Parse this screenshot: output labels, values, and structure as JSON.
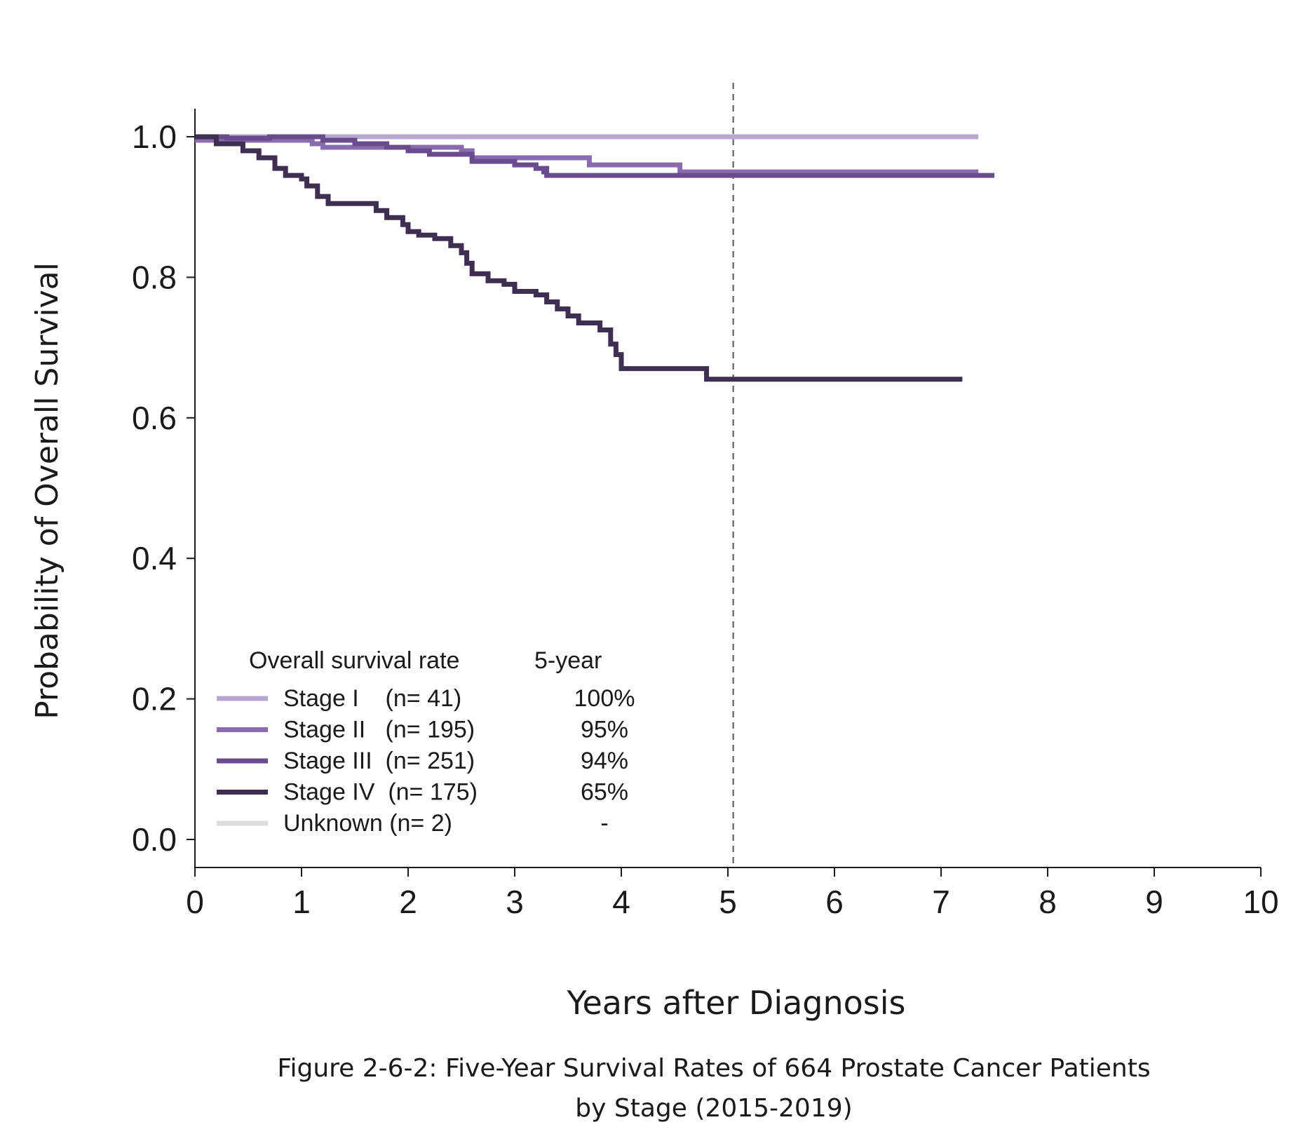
{
  "chart_data": {
    "type": "line",
    "xlabel": "Years after Diagnosis",
    "ylabel": "Probability of Overall Survival",
    "caption_line1": "Figure 2-6-2: Five-Year Survival Rates of 664 Prostate Cancer Patients",
    "caption_line2": "by Stage (2015-2019)",
    "xlim": [
      0,
      10
    ],
    "ylim": [
      0,
      1
    ],
    "x_ticks": [
      "0",
      "1",
      "2",
      "3",
      "4",
      "5",
      "6",
      "7",
      "8",
      "9",
      "10"
    ],
    "y_ticks": [
      "0.0",
      "0.2",
      "0.4",
      "0.6",
      "0.8",
      "1.0"
    ],
    "reference_line_x": 5.05,
    "grid": false,
    "legend_position": "bottom-left",
    "legend": {
      "header_left": "Overall survival rate",
      "header_right": "5-year",
      "entries": [
        {
          "label": "Stage I    (n= 41)",
          "rate": "100%",
          "color": "#b7a7d0"
        },
        {
          "label": "Stage II   (n= 195)",
          "rate": "95%",
          "color": "#8a6bb0"
        },
        {
          "label": "Stage III  (n= 251)",
          "rate": "94%",
          "color": "#6a4c8e"
        },
        {
          "label": "Stage IV  (n= 175)",
          "rate": "65%",
          "color": "#3e2f52"
        },
        {
          "label": "Unknown (n= 2)",
          "rate": "-",
          "color": "#dcdcdc"
        }
      ]
    },
    "series": [
      {
        "color": "#dcdcdc",
        "points": [
          [
            0,
            1.0
          ],
          [
            0.75,
            1.0
          ]
        ]
      },
      {
        "color": "#b7a7d0",
        "points": [
          [
            0,
            1.0
          ],
          [
            7.35,
            1.0
          ]
        ]
      },
      {
        "color": "#8a6bb0",
        "points": [
          [
            0,
            0.995
          ],
          [
            0.6,
            0.995
          ],
          [
            1.1,
            0.99
          ],
          [
            1.2,
            0.985
          ],
          [
            1.6,
            0.985
          ],
          [
            2.5,
            0.98
          ],
          [
            2.6,
            0.97
          ],
          [
            3.6,
            0.97
          ],
          [
            3.7,
            0.96
          ],
          [
            4.5,
            0.96
          ],
          [
            4.55,
            0.95
          ],
          [
            7.35,
            0.95
          ]
        ]
      },
      {
        "color": "#6a4c8e",
        "points": [
          [
            0,
            1.0
          ],
          [
            0.3,
            0.998
          ],
          [
            0.7,
            1.0
          ],
          [
            1.2,
            0.995
          ],
          [
            1.5,
            0.99
          ],
          [
            1.8,
            0.985
          ],
          [
            2.0,
            0.98
          ],
          [
            2.2,
            0.975
          ],
          [
            2.6,
            0.965
          ],
          [
            3.0,
            0.96
          ],
          [
            3.2,
            0.955
          ],
          [
            3.3,
            0.95
          ],
          [
            3.25,
            0.95
          ],
          [
            3.3,
            0.945
          ],
          [
            7.5,
            0.945
          ]
        ]
      },
      {
        "color": "#3e2f52",
        "points": [
          [
            0,
            1.0
          ],
          [
            0.2,
            0.99
          ],
          [
            0.45,
            0.98
          ],
          [
            0.6,
            0.97
          ],
          [
            0.75,
            0.955
          ],
          [
            0.85,
            0.945
          ],
          [
            1.0,
            0.94
          ],
          [
            1.05,
            0.93
          ],
          [
            1.15,
            0.915
          ],
          [
            1.25,
            0.905
          ],
          [
            1.7,
            0.895
          ],
          [
            1.8,
            0.885
          ],
          [
            1.95,
            0.875
          ],
          [
            2.0,
            0.865
          ],
          [
            2.1,
            0.86
          ],
          [
            2.25,
            0.855
          ],
          [
            2.4,
            0.845
          ],
          [
            2.5,
            0.835
          ],
          [
            2.55,
            0.82
          ],
          [
            2.6,
            0.805
          ],
          [
            2.75,
            0.795
          ],
          [
            2.9,
            0.79
          ],
          [
            3.0,
            0.78
          ],
          [
            3.2,
            0.775
          ],
          [
            3.3,
            0.765
          ],
          [
            3.4,
            0.755
          ],
          [
            3.5,
            0.745
          ],
          [
            3.6,
            0.735
          ],
          [
            3.8,
            0.725
          ],
          [
            3.9,
            0.705
          ],
          [
            3.95,
            0.69
          ],
          [
            4.0,
            0.67
          ],
          [
            4.8,
            0.66
          ],
          [
            4.8,
            0.655
          ],
          [
            7.2,
            0.655
          ]
        ]
      }
    ]
  }
}
